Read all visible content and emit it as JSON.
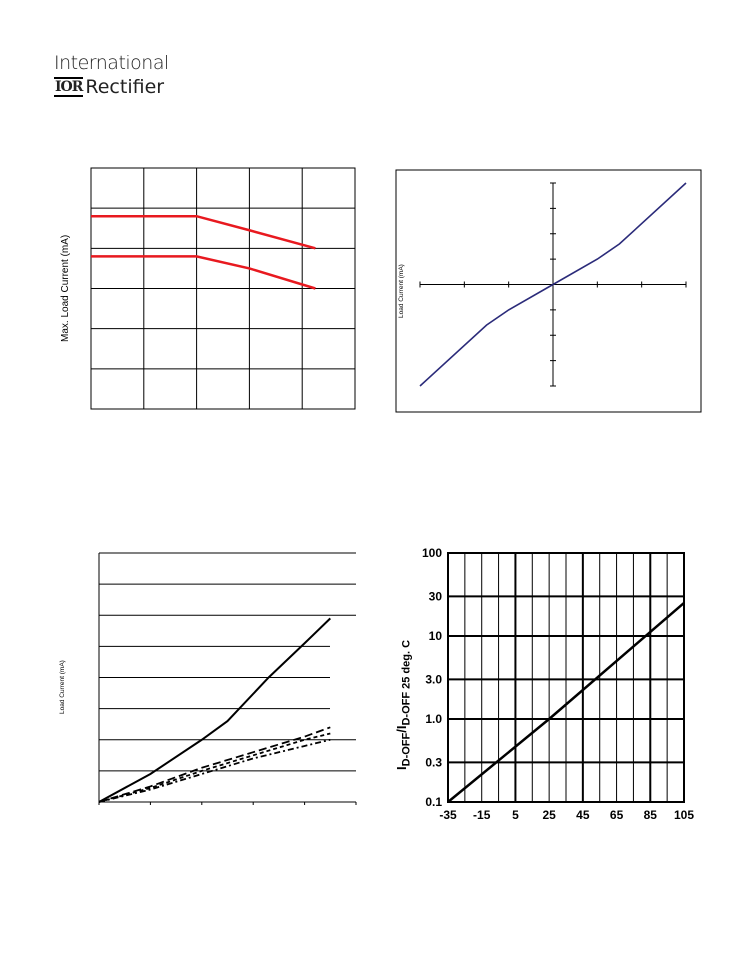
{
  "logo": {
    "line1": "International",
    "mark": "IOR",
    "line2": "Rectifier"
  },
  "chart_data": [
    {
      "type": "line",
      "ylabel": "Max. Load Current (mA)",
      "grid": true,
      "x": [
        0,
        1,
        2,
        3,
        4,
        5
      ],
      "series": [
        {
          "color": "#e8191f",
          "points": [
            [
              0,
              4.8
            ],
            [
              2,
              4.8
            ],
            [
              3,
              4.45
            ],
            [
              4.25,
              4.0
            ]
          ]
        },
        {
          "color": "#e8191f",
          "points": [
            [
              0,
              3.8
            ],
            [
              2,
              3.8
            ],
            [
              3,
              3.5
            ],
            [
              4.25,
              3.0
            ]
          ]
        }
      ],
      "xlim": [
        0,
        5
      ],
      "ylim": [
        0,
        6
      ]
    },
    {
      "type": "line",
      "ylabel": "Load Current (mA)",
      "grid": false,
      "series": [
        {
          "color": "#2b2b7a",
          "points": [
            [
              -3,
              -4
            ],
            [
              -1.5,
              -1.6
            ],
            [
              -1,
              -1.0
            ],
            [
              0,
              0
            ],
            [
              1,
              1.0
            ],
            [
              1.5,
              1.6
            ],
            [
              3,
              4
            ]
          ]
        }
      ],
      "xlim": [
        -3,
        3
      ],
      "ylim": [
        -4,
        4
      ]
    },
    {
      "type": "line",
      "ylabel": "Load Current (mA)",
      "grid": true,
      "series": [
        {
          "style": "solid",
          "points": [
            [
              0,
              0
            ],
            [
              1,
              0.9
            ],
            [
              2,
              2.0
            ],
            [
              2.5,
              2.6
            ],
            [
              3.3,
              4.0
            ],
            [
              4,
              5.1
            ],
            [
              4.5,
              5.9
            ]
          ]
        },
        {
          "style": "dashed",
          "points": [
            [
              0,
              0
            ],
            [
              1,
              0.5
            ],
            [
              2,
              1.1
            ],
            [
              3,
              1.6
            ],
            [
              4,
              2.1
            ],
            [
              4.5,
              2.4
            ]
          ]
        },
        {
          "style": "dashed",
          "points": [
            [
              0,
              0
            ],
            [
              1,
              0.45
            ],
            [
              2,
              1.0
            ],
            [
              3,
              1.5
            ],
            [
              4,
              2.0
            ],
            [
              4.5,
              2.2
            ]
          ]
        },
        {
          "style": "dashed",
          "points": [
            [
              0,
              0
            ],
            [
              1,
              0.4
            ],
            [
              2,
              0.9
            ],
            [
              3,
              1.4
            ],
            [
              4,
              1.8
            ],
            [
              4.5,
              2.0
            ]
          ]
        }
      ],
      "xlim": [
        0,
        5
      ],
      "ylim": [
        0,
        8
      ]
    },
    {
      "type": "line",
      "ylabel": "I D-OFF / I D-OFF 25 deg. C",
      "ylabel_parts": {
        "i1": "I",
        "sub1": "D-OFF",
        "slash": "/",
        "i2": "I",
        "sub2": "D-OFF 25 deg. C"
      },
      "yscale": "log",
      "grid": true,
      "x_ticks": [
        "-35",
        "-15",
        "5",
        "25",
        "45",
        "65",
        "85",
        "105"
      ],
      "y_ticks": [
        "0.1",
        "0.3",
        "1.0",
        "3.0",
        "10",
        "30",
        "100"
      ],
      "y_values": [
        0.1,
        0.3,
        1,
        3,
        10,
        30,
        100
      ],
      "series": [
        {
          "color": "#000000",
          "points": [
            [
              -35,
              0.1
            ],
            [
              25,
              1.0
            ],
            [
              105,
              25
            ]
          ]
        }
      ],
      "xlim": [
        -35,
        105
      ],
      "ylim": [
        0.1,
        100
      ]
    }
  ]
}
